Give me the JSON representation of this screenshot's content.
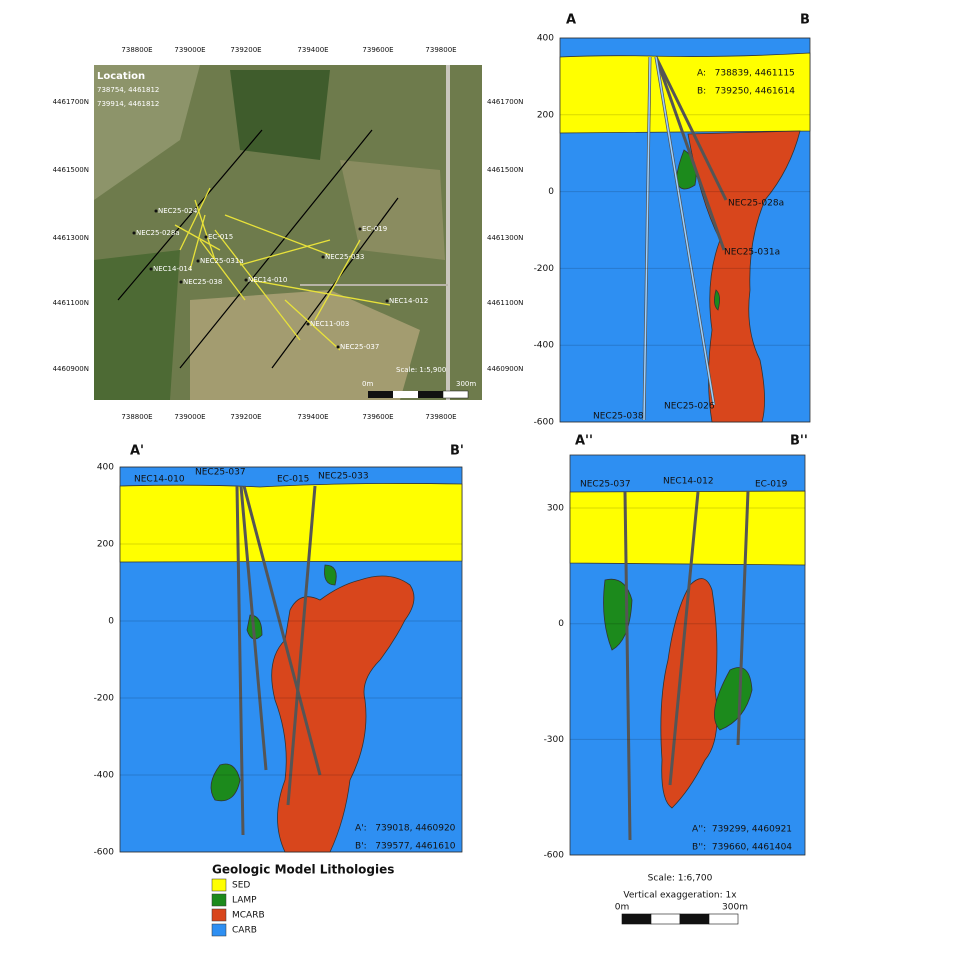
{
  "map": {
    "title": "Location",
    "corner_labels": [
      "738754, 4461812",
      "739914, 4461812"
    ],
    "x_ticks": [
      "738800E",
      "739000E",
      "739200E",
      "739400E",
      "739600E",
      "739800E"
    ],
    "y_ticks": [
      "4461700N",
      "4461500N",
      "4461300N",
      "4461100N",
      "4460900N"
    ],
    "wells": [
      "NEC25-024",
      "NEC25-028a",
      "EC-015",
      "NEC14-014",
      "NEC25-031a",
      "NEC25-038",
      "NEC14-010",
      "NEC25-033",
      "EC-019",
      "NEC14-012",
      "NEC11-003",
      "NEC25-037"
    ],
    "scale": "Scale: 1:5,900",
    "scale_bar": [
      "0m",
      "300m"
    ]
  },
  "sections": [
    {
      "start": "A",
      "end": "B",
      "coords": [
        "A:   738839, 4461115",
        "B:   739250, 4461614"
      ],
      "yticks": [
        400,
        200,
        0,
        -200,
        -400,
        -600
      ],
      "wells": [
        "NEC25-028a",
        "NEC25-031a",
        "NEC25-026",
        "NEC25-038"
      ]
    },
    {
      "start": "A'",
      "end": "B'",
      "coords": [
        "A':   739018, 4460920",
        "B':   739577, 4461610"
      ],
      "yticks": [
        400,
        200,
        0,
        -200,
        -400,
        -600
      ],
      "wells": [
        "NEC14-010",
        "NEC25-037",
        "EC-015",
        "NEC25-033"
      ]
    },
    {
      "start": "A''",
      "end": "B''",
      "coords": [
        "A'':  739299, 4460921",
        "B'':  739660, 4461404"
      ],
      "yticks": [
        300,
        0,
        -300,
        -600
      ],
      "wells": [
        "NEC25-037",
        "NEC14-012",
        "EC-019"
      ]
    }
  ],
  "legend": {
    "title": "Geologic Model Lithologies",
    "items": [
      {
        "label": "SED",
        "color": "#ffff00"
      },
      {
        "label": "LAMP",
        "color": "#1c8a1c"
      },
      {
        "label": "MCARB",
        "color": "#d8461c"
      },
      {
        "label": "CARB",
        "color": "#2e8ff2"
      }
    ]
  },
  "section_scale": {
    "scale": "Scale: 1:6,700",
    "vertical_exaggeration": "Vertical exaggeration: 1x",
    "scale_bar": [
      "0m",
      "300m"
    ]
  }
}
